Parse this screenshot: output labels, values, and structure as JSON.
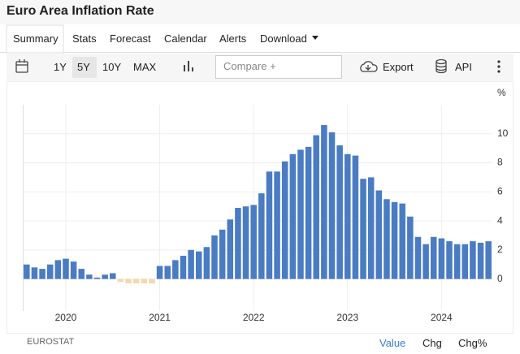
{
  "header": {
    "title": "Euro Area Inflation Rate"
  },
  "tabs": [
    "Summary",
    "Stats",
    "Forecast",
    "Calendar",
    "Alerts",
    "Download"
  ],
  "toolbar": {
    "ranges": [
      "1Y",
      "5Y",
      "10Y",
      "MAX"
    ],
    "compare": "Compare +",
    "export": "Export",
    "api": "API"
  },
  "footer": {
    "source": "EUROSTAT",
    "modes": [
      "Value",
      "Chg",
      "Chg%"
    ]
  },
  "chart_data": {
    "type": "bar",
    "unit": "%",
    "categories": [
      null,
      null,
      null,
      null,
      null,
      "2020",
      null,
      null,
      null,
      null,
      null,
      null,
      null,
      null,
      null,
      null,
      null,
      "2021",
      null,
      null,
      null,
      null,
      null,
      null,
      null,
      null,
      null,
      null,
      null,
      "2022",
      null,
      null,
      null,
      null,
      null,
      null,
      null,
      null,
      null,
      null,
      null,
      "2023",
      null,
      null,
      null,
      null,
      null,
      null,
      null,
      null,
      null,
      null,
      null,
      "2024",
      null,
      null,
      null,
      null,
      null,
      null
    ],
    "values": [
      1.0,
      0.8,
      0.7,
      1.0,
      1.3,
      1.4,
      1.2,
      0.7,
      0.3,
      0.1,
      0.3,
      0.4,
      -0.2,
      -0.3,
      -0.3,
      -0.3,
      -0.3,
      0.9,
      0.9,
      1.3,
      1.6,
      2.0,
      1.9,
      2.2,
      3.0,
      3.4,
      4.1,
      4.9,
      5.0,
      5.1,
      5.9,
      7.4,
      7.4,
      8.1,
      8.6,
      8.9,
      9.1,
      9.9,
      10.6,
      10.1,
      9.2,
      8.6,
      8.5,
      6.9,
      7.0,
      6.1,
      5.5,
      5.3,
      5.2,
      4.3,
      2.9,
      2.4,
      2.9,
      2.8,
      2.6,
      2.4,
      2.4,
      2.6,
      2.5,
      2.6
    ],
    "color": "#4a7cc3",
    "negative_color": "#f3d9ab",
    "ylim": [
      -2.2,
      12
    ],
    "yticks": [
      0,
      2,
      4,
      6,
      8,
      10
    ],
    "grid": true
  }
}
